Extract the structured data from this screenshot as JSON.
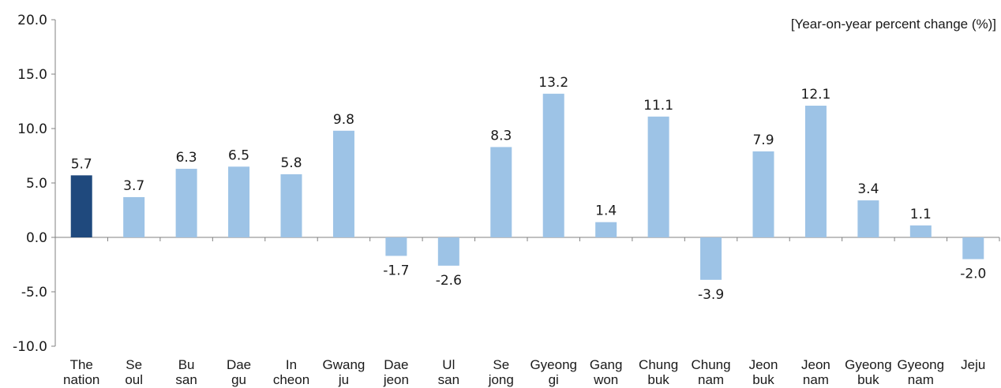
{
  "chart_data": {
    "type": "bar",
    "unit_label": "[Year-on-year percent change (%)]",
    "ylim": [
      -10.0,
      20.0
    ],
    "yticks": [
      "20.0",
      "15.0",
      "10.0",
      "5.0",
      "0.0",
      "-5.0",
      "-10.0"
    ],
    "ytick_values": [
      20,
      15,
      10,
      5,
      0,
      -5,
      -10
    ],
    "grid": false,
    "categories": [
      [
        "The",
        "nation"
      ],
      [
        "Se",
        "oul"
      ],
      [
        "Bu",
        "san"
      ],
      [
        "Dae",
        "gu"
      ],
      [
        "In",
        "cheon"
      ],
      [
        "Gwang",
        "ju"
      ],
      [
        "Dae",
        "jeon"
      ],
      [
        "Ul",
        "san"
      ],
      [
        "Se",
        "jong"
      ],
      [
        "Gyeong",
        "gi"
      ],
      [
        "Gang",
        "won"
      ],
      [
        "Chung",
        "buk"
      ],
      [
        "Chung",
        "nam"
      ],
      [
        "Jeon",
        "buk"
      ],
      [
        "Jeon",
        "nam"
      ],
      [
        "Gyeong",
        "buk"
      ],
      [
        "Gyeong",
        "nam"
      ],
      [
        "Jeju"
      ]
    ],
    "values": [
      5.7,
      3.7,
      6.3,
      6.5,
      5.8,
      9.8,
      -1.7,
      -2.6,
      8.3,
      13.2,
      1.4,
      11.1,
      -3.9,
      7.9,
      12.1,
      3.4,
      1.1,
      -2.0
    ],
    "data_labels": [
      "5.7",
      "3.7",
      "6.3",
      "6.5",
      "5.8",
      "9.8",
      "-1.7",
      "-2.6",
      "8.3",
      "13.2",
      "1.4",
      "11.1",
      "-3.9",
      "7.9",
      "12.1",
      "3.4",
      "1.1",
      "-2.0"
    ],
    "colors": {
      "highlight": "#1f497d",
      "bar": "#9dc3e6",
      "axis": "#808080"
    }
  }
}
